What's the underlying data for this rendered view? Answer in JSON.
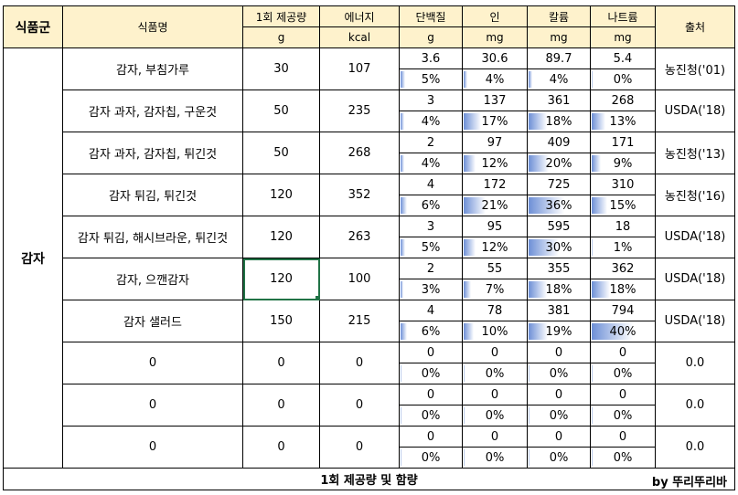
{
  "headers": {
    "group": "식품군",
    "name": "식품명",
    "serving": "1회 제공량",
    "energy": "에너지",
    "protein": "단백질",
    "phosphorus": "인",
    "potassium": "칼륨",
    "sodium": "나트륨",
    "source": "출처"
  },
  "units": {
    "serving": "g",
    "energy": "kcal",
    "protein": "g",
    "phosphorus": "mg",
    "potassium": "mg",
    "sodium": "mg"
  },
  "group_name": "감자",
  "rows": [
    {
      "name": "감자, 부침가루",
      "serving": "30",
      "energy": "107",
      "protein": "3.6",
      "phosphorus": "30.6",
      "potassium": "89.7",
      "sodium": "5.4",
      "protein_pct": "5%",
      "phosphorus_pct": "4%",
      "potassium_pct": "4%",
      "sodium_pct": "0%",
      "source": "농진청('01)"
    },
    {
      "name": "감자 과자, 감자칩, 구운것",
      "serving": "50",
      "energy": "235",
      "protein": "3",
      "phosphorus": "137",
      "potassium": "361",
      "sodium": "268",
      "protein_pct": "4%",
      "phosphorus_pct": "17%",
      "potassium_pct": "18%",
      "sodium_pct": "13%",
      "source": "USDA('18)"
    },
    {
      "name": "감자 과자, 감자칩, 튀긴것",
      "serving": "50",
      "energy": "268",
      "protein": "2",
      "phosphorus": "97",
      "potassium": "409",
      "sodium": "171",
      "protein_pct": "4%",
      "phosphorus_pct": "12%",
      "potassium_pct": "20%",
      "sodium_pct": "9%",
      "source": "농진청('13)"
    },
    {
      "name": "감자 튀김, 튀긴것",
      "serving": "120",
      "energy": "352",
      "protein": "4",
      "phosphorus": "172",
      "potassium": "725",
      "sodium": "310",
      "protein_pct": "6%",
      "phosphorus_pct": "21%",
      "potassium_pct": "36%",
      "sodium_pct": "15%",
      "source": "농진청('16)"
    },
    {
      "name": "감자 튀김, 해시브라운, 튀긴것",
      "serving": "120",
      "energy": "263",
      "protein": "3",
      "phosphorus": "95",
      "potassium": "595",
      "sodium": "18",
      "protein_pct": "5%",
      "phosphorus_pct": "12%",
      "potassium_pct": "30%",
      "sodium_pct": "1%",
      "source": "USDA('18)"
    },
    {
      "name": "감자, 으깬감자",
      "serving": "120",
      "energy": "100",
      "protein": "2",
      "phosphorus": "55",
      "potassium": "355",
      "sodium": "362",
      "protein_pct": "3%",
      "phosphorus_pct": "7%",
      "potassium_pct": "18%",
      "sodium_pct": "18%",
      "source": "USDA('18)"
    },
    {
      "name": "감자 샐러드",
      "serving": "150",
      "energy": "215",
      "protein": "4",
      "phosphorus": "78",
      "potassium": "381",
      "sodium": "794",
      "protein_pct": "6%",
      "phosphorus_pct": "10%",
      "potassium_pct": "19%",
      "sodium_pct": "40%",
      "source": "USDA('18)"
    },
    {
      "name": "0",
      "serving": "0",
      "energy": "0",
      "protein": "0",
      "phosphorus": "0",
      "potassium": "0",
      "sodium": "0",
      "protein_pct": "0%",
      "phosphorus_pct": "0%",
      "potassium_pct": "0%",
      "sodium_pct": "0%",
      "source": "0.0"
    },
    {
      "name": "0",
      "serving": "0",
      "energy": "0",
      "protein": "0",
      "phosphorus": "0",
      "potassium": "0",
      "sodium": "0",
      "protein_pct": "0%",
      "phosphorus_pct": "0%",
      "potassium_pct": "0%",
      "sodium_pct": "0%",
      "source": "0.0"
    },
    {
      "name": "0",
      "serving": "0",
      "energy": "0",
      "protein": "0",
      "phosphorus": "0",
      "potassium": "0",
      "sodium": "0",
      "protein_pct": "0%",
      "phosphorus_pct": "0%",
      "potassium_pct": "0%",
      "sodium_pct": "0%",
      "source": "0.0"
    }
  ],
  "footer": {
    "title": "1회 제공량 및 함량",
    "by": "by 뚜리뚜리바"
  }
}
